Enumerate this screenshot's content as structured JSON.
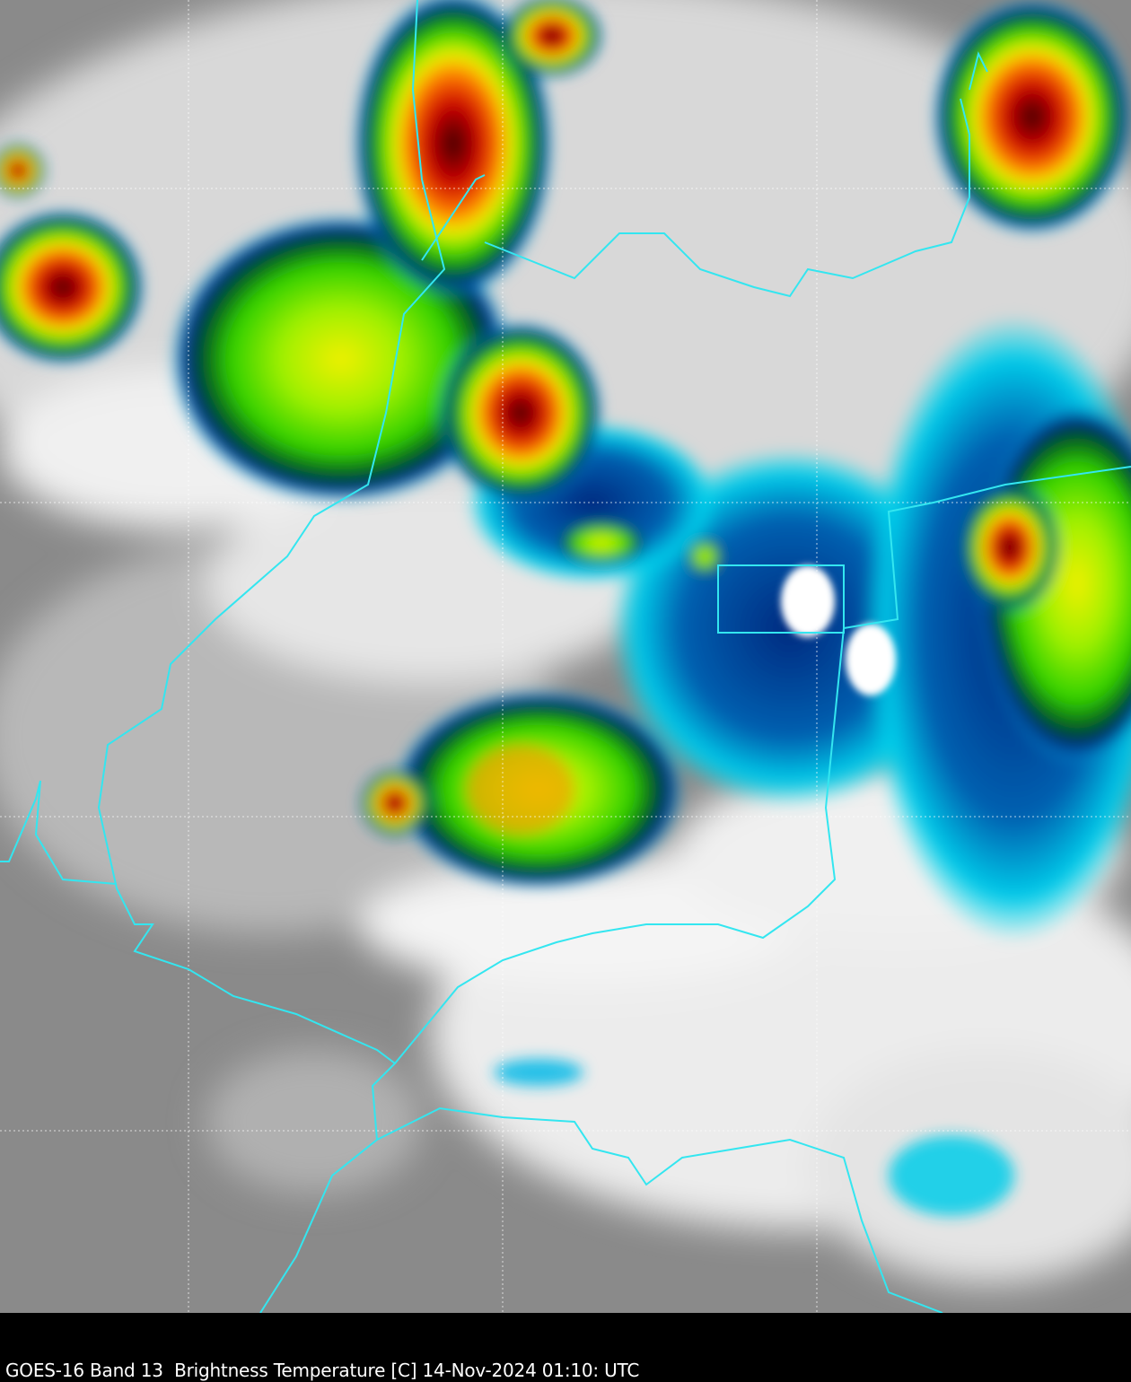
{
  "caption": "GOES-16 Band 13  Brightness Temperature [C] 14-Nov-2024 01:10: UTC",
  "colors": {
    "background": "#000000",
    "border_lines": "#33e6f0",
    "grid_lines": "#ffffff",
    "clear_sky": "#8a8a8a",
    "cloud": "#f2f2f2",
    "cold_cyan": "#00d8f0",
    "cold_blue": "#003a9c",
    "cold_green": "#4ee000",
    "cold_yellow": "#f0f000",
    "cold_red": "#d00000",
    "coldest": "#222222"
  }
}
